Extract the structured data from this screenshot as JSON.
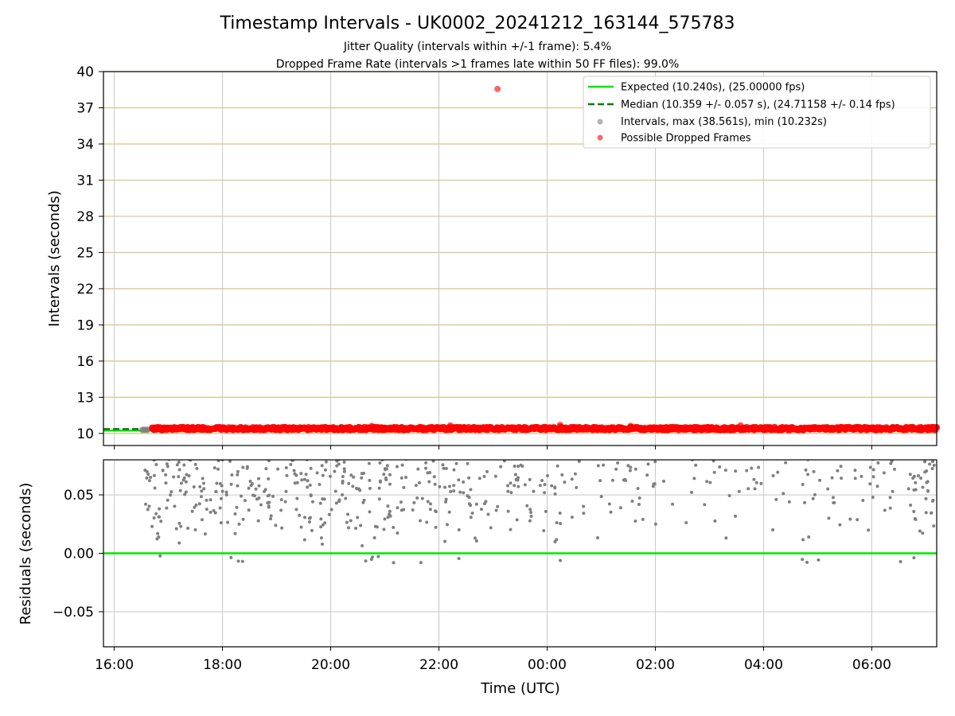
{
  "title": "Timestamp Intervals - UK0002_20241212_163144_575783",
  "subtitle_lines": [
    "Jitter Quality (intervals within +/-1 frame): 5.4%",
    "Dropped Frame Rate (intervals >1 frames late within 50 FF files): 99.0%"
  ],
  "xlabel": "Time (UTC)",
  "colors": {
    "expected": "#00e600",
    "median": "#007f00",
    "intervals": "#808080",
    "dropped": "#ff0000",
    "top_grid": "#d4c48a",
    "grid": "#c8c8c8"
  },
  "chart_data": [
    {
      "type": "scatter",
      "ylabel": "Intervals (seconds)",
      "ylim": [
        9.0,
        40.0
      ],
      "yticks": [
        10,
        13,
        16,
        19,
        22,
        25,
        28,
        31,
        34,
        37,
        40
      ],
      "xlim": [
        "2024-12-12 15:48",
        "2024-12-13 07:12"
      ],
      "xtick_labels": [
        "16:00",
        "18:00",
        "20:00",
        "22:00",
        "00:00",
        "02:00",
        "04:00",
        "06:00"
      ],
      "grid": true,
      "legend_placement": "upper-right",
      "legend": [
        "Expected (10.240s), (25.00000 fps)",
        "Median (10.359 +/- 0.057 s), (24.71158 +/- 0.14 fps)",
        "Intervals, max (38.561s), min (10.232s)",
        "Possible Dropped Frames"
      ],
      "expected_interval": 10.24,
      "median_interval": 10.359,
      "median_span": [
        "2024-12-12 15:48",
        "2024-12-12 16:40"
      ],
      "intervals_start": "2024-12-12 16:31",
      "dropped_start": "2024-12-12 16:42",
      "data_end": "2024-12-13 07:12",
      "dropped_band": [
        10.23,
        10.55
      ],
      "max_point": {
        "x": "2024-12-12 23:05",
        "y": 38.561
      }
    },
    {
      "type": "scatter",
      "ylabel": "Residuals (seconds)",
      "ylim": [
        -0.08,
        0.08
      ],
      "yticks": [
        "−0.05",
        "0.00",
        "0.05"
      ],
      "ytick_values": [
        -0.05,
        0.0,
        0.05
      ],
      "xtick_labels": [
        "16:00",
        "18:00",
        "20:00",
        "22:00",
        "00:00",
        "02:00",
        "04:00",
        "06:00"
      ],
      "expected_residual": 0.0,
      "grid": true
    }
  ]
}
